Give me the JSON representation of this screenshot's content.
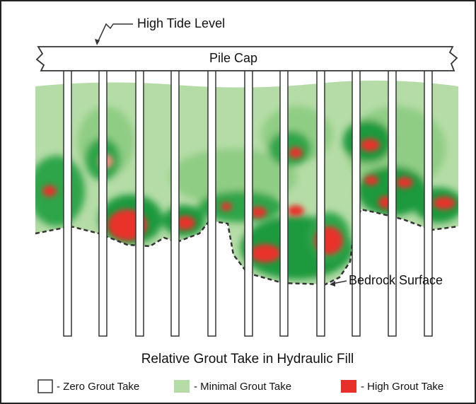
{
  "labels": {
    "high_tide": "High Tide Level",
    "pile_cap": "Pile Cap",
    "bedrock": "Bedrock Surface"
  },
  "caption": "Relative Grout Take in Hydraulic Fill",
  "legend": [
    {
      "label": "- Zero Grout Take"
    },
    {
      "label": "- Minimal Grout Take"
    },
    {
      "label": "- High Grout Take"
    }
  ]
}
